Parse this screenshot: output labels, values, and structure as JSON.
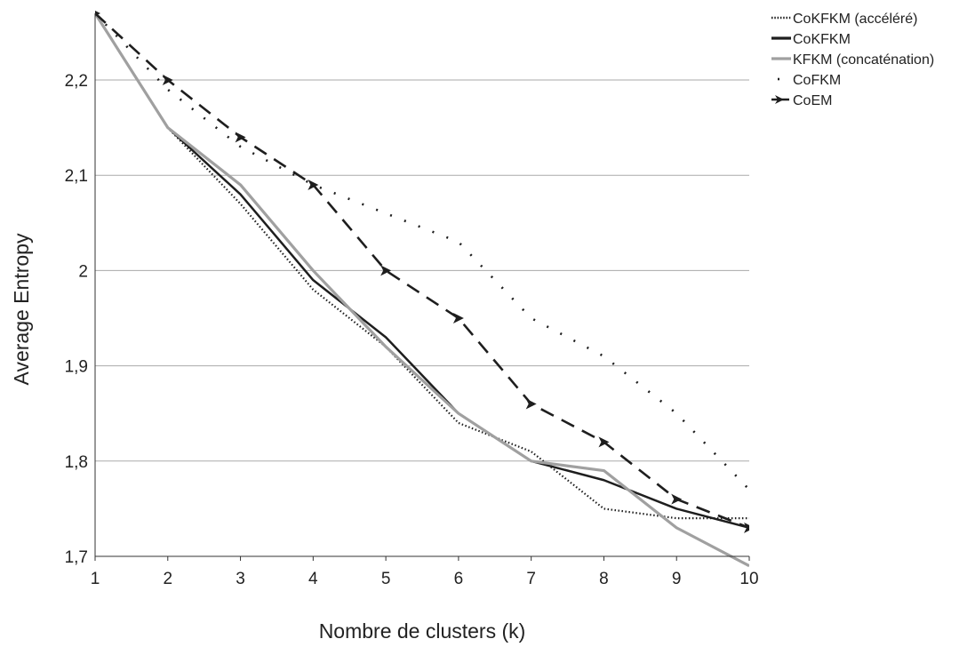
{
  "chart_data": {
    "type": "line",
    "xlabel": "Nombre de clusters (k)",
    "ylabel": "Average Entropy",
    "xlim": [
      1,
      10
    ],
    "ylim": [
      1.7,
      2.27
    ],
    "x": [
      1,
      2,
      3,
      4,
      5,
      6,
      7,
      8,
      9,
      10
    ],
    "x_tick_labels": [
      "1",
      "2",
      "3",
      "4",
      "5",
      "6",
      "7",
      "8",
      "9",
      "10"
    ],
    "y_ticks": [
      1.7,
      1.8,
      1.9,
      2.0,
      2.1,
      2.2
    ],
    "y_tick_labels": [
      "1,7",
      "1,8",
      "1,9",
      "2",
      "2,1",
      "2,2"
    ],
    "grid": "horizontal",
    "legend_position": "top-right",
    "series": [
      {
        "name": "CoKFKM (accéléré)",
        "style": "dotted",
        "color": "#222222",
        "values": [
          2.27,
          2.15,
          2.07,
          1.98,
          1.92,
          1.84,
          1.81,
          1.75,
          1.74,
          1.74
        ]
      },
      {
        "name": "CoKFKM",
        "style": "solid",
        "color": "#222222",
        "values": [
          2.27,
          2.15,
          2.08,
          1.99,
          1.93,
          1.85,
          1.8,
          1.78,
          1.75,
          1.73
        ]
      },
      {
        "name": "KFKM (concaténation)",
        "style": "solid-gray",
        "color": "#a0a0a0",
        "values": [
          2.27,
          2.15,
          2.09,
          2.0,
          1.92,
          1.85,
          1.8,
          1.79,
          1.73,
          1.69
        ]
      },
      {
        "name": "CoFKM",
        "style": "sparse-dots",
        "color": "#222222",
        "values": [
          2.27,
          2.19,
          2.13,
          2.09,
          2.06,
          2.03,
          1.95,
          1.91,
          1.85,
          1.77
        ]
      },
      {
        "name": "CoEM",
        "style": "dashed-arrow",
        "color": "#222222",
        "values": [
          2.27,
          2.2,
          2.14,
          2.09,
          2.0,
          1.95,
          1.86,
          1.82,
          1.76,
          1.73
        ]
      }
    ]
  }
}
